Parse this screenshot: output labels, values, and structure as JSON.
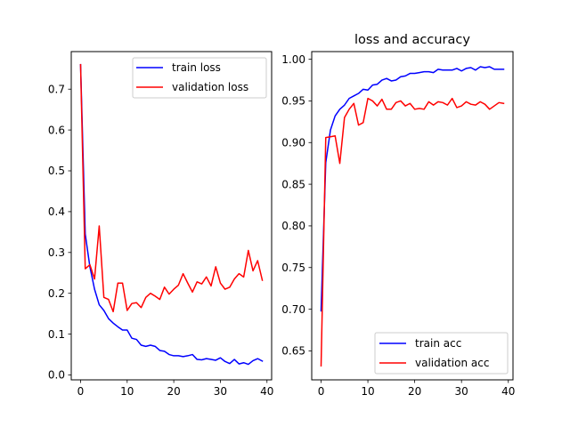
{
  "chart_data": [
    {
      "type": "line",
      "title": "",
      "xlabel": "",
      "ylabel": "",
      "xlim": [
        -2,
        41
      ],
      "ylim": [
        -0.012,
        0.792
      ],
      "xticks": [
        0,
        10,
        20,
        30,
        40
      ],
      "yticks": [
        0.0,
        0.1,
        0.2,
        0.3,
        0.4,
        0.5,
        0.6,
        0.7
      ],
      "ytick_labels": [
        "0.0",
        "0.1",
        "0.2",
        "0.3",
        "0.4",
        "0.5",
        "0.6",
        "0.7"
      ],
      "xtick_labels": [
        "0",
        "10",
        "20",
        "30",
        "40"
      ],
      "legend": "upper right",
      "grid": false,
      "x": [
        0,
        1,
        2,
        3,
        4,
        5,
        6,
        7,
        8,
        9,
        10,
        11,
        12,
        13,
        14,
        15,
        16,
        17,
        18,
        19,
        20,
        21,
        22,
        23,
        24,
        25,
        26,
        27,
        28,
        29,
        30,
        31,
        32,
        33,
        34,
        35,
        36,
        37,
        38,
        39
      ],
      "series": [
        {
          "name": "train loss",
          "color": "#0000ff",
          "values": [
            0.76,
            0.345,
            0.265,
            0.21,
            0.172,
            0.158,
            0.138,
            0.127,
            0.118,
            0.11,
            0.11,
            0.09,
            0.087,
            0.073,
            0.07,
            0.073,
            0.07,
            0.06,
            0.058,
            0.05,
            0.047,
            0.047,
            0.045,
            0.047,
            0.05,
            0.038,
            0.037,
            0.04,
            0.038,
            0.036,
            0.042,
            0.033,
            0.028,
            0.038,
            0.027,
            0.03,
            0.026,
            0.035,
            0.04,
            0.034
          ]
        },
        {
          "name": "validation loss",
          "color": "#ff0000",
          "values": [
            0.76,
            0.26,
            0.27,
            0.235,
            0.365,
            0.19,
            0.185,
            0.155,
            0.225,
            0.225,
            0.158,
            0.175,
            0.177,
            0.165,
            0.19,
            0.2,
            0.193,
            0.185,
            0.215,
            0.198,
            0.21,
            0.22,
            0.248,
            0.225,
            0.203,
            0.228,
            0.223,
            0.24,
            0.218,
            0.265,
            0.225,
            0.21,
            0.215,
            0.235,
            0.248,
            0.24,
            0.305,
            0.255,
            0.28,
            0.232
          ]
        }
      ]
    },
    {
      "type": "line",
      "title": "loss and accuracy",
      "xlabel": "",
      "ylabel": "",
      "xlim": [
        -2,
        41
      ],
      "ylim": [
        0.6152,
        1.0092
      ],
      "xticks": [
        0,
        10,
        20,
        30,
        40
      ],
      "yticks": [
        0.65,
        0.7,
        0.75,
        0.8,
        0.85,
        0.9,
        0.95,
        1.0
      ],
      "ytick_labels": [
        "0.65",
        "0.70",
        "0.75",
        "0.80",
        "0.85",
        "0.90",
        "0.95",
        "1.00"
      ],
      "xtick_labels": [
        "0",
        "10",
        "20",
        "30",
        "40"
      ],
      "legend": "lower right",
      "grid": false,
      "x": [
        0,
        1,
        2,
        3,
        4,
        5,
        6,
        7,
        8,
        9,
        10,
        11,
        12,
        13,
        14,
        15,
        16,
        17,
        18,
        19,
        20,
        21,
        22,
        23,
        24,
        25,
        26,
        27,
        28,
        29,
        30,
        31,
        32,
        33,
        34,
        35,
        36,
        37,
        38,
        39
      ],
      "series": [
        {
          "name": "train acc",
          "color": "#0000ff",
          "values": [
            0.698,
            0.876,
            0.915,
            0.932,
            0.94,
            0.945,
            0.953,
            0.956,
            0.959,
            0.964,
            0.963,
            0.969,
            0.97,
            0.975,
            0.977,
            0.974,
            0.975,
            0.979,
            0.98,
            0.983,
            0.983,
            0.984,
            0.985,
            0.985,
            0.984,
            0.988,
            0.987,
            0.987,
            0.987,
            0.989,
            0.986,
            0.989,
            0.99,
            0.987,
            0.991,
            0.99,
            0.991,
            0.988,
            0.988,
            0.988
          ]
        },
        {
          "name": "validation acc",
          "color": "#ff0000",
          "values": [
            0.632,
            0.906,
            0.907,
            0.908,
            0.875,
            0.93,
            0.94,
            0.947,
            0.921,
            0.924,
            0.953,
            0.95,
            0.944,
            0.952,
            0.94,
            0.94,
            0.948,
            0.95,
            0.944,
            0.947,
            0.94,
            0.941,
            0.94,
            0.949,
            0.945,
            0.949,
            0.948,
            0.945,
            0.953,
            0.942,
            0.944,
            0.949,
            0.946,
            0.945,
            0.949,
            0.946,
            0.94,
            0.944,
            0.948,
            0.947
          ]
        }
      ]
    }
  ]
}
